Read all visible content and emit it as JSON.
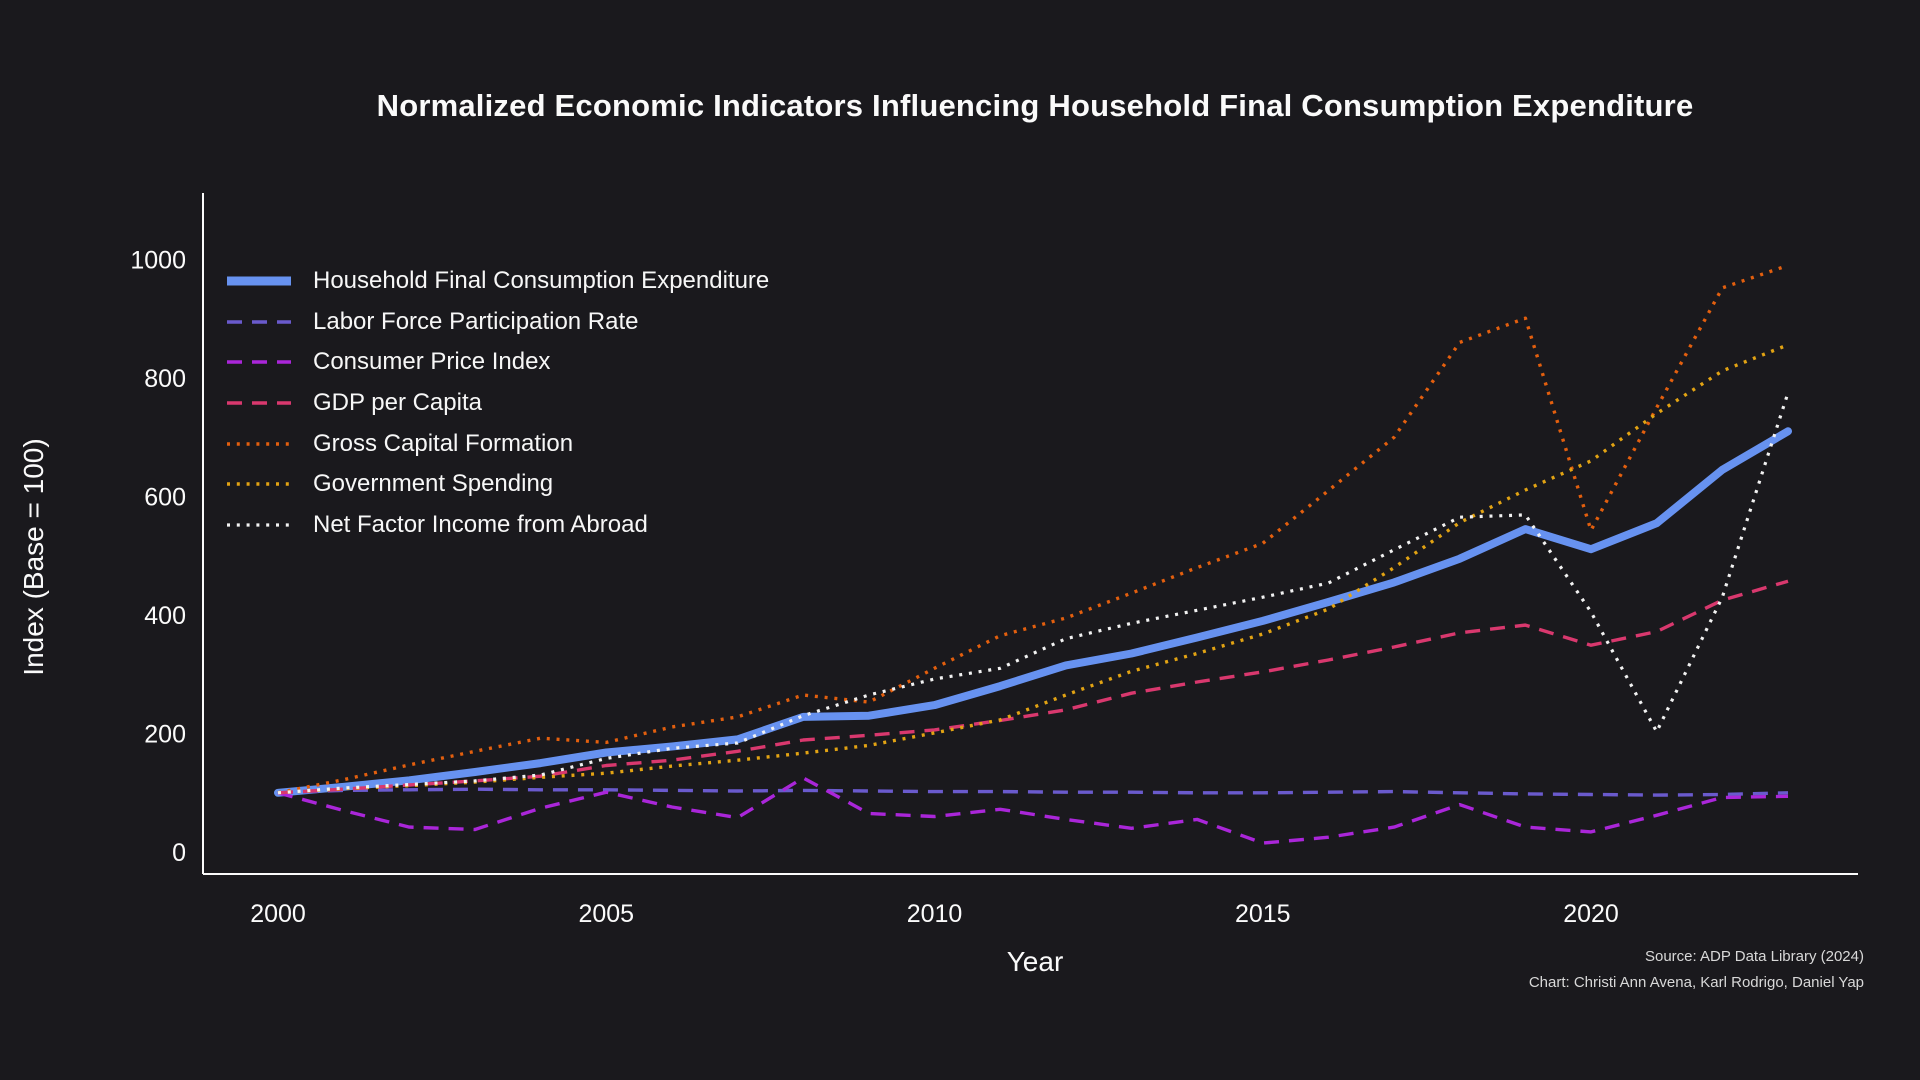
{
  "background_color": "#1a191d",
  "text_color": "#fafafa",
  "axis_color": "#fbfbfb",
  "source": {
    "line1": "Source: ADP Data Library (2024)",
    "line2": "Chart: Christi Ann Avena, Karl Rodrigo, Daniel Yap"
  },
  "chart_data": {
    "type": "line",
    "title": "Normalized Economic Indicators Influencing Household Final Consumption Expenditure",
    "xlabel": "Year",
    "ylabel": "Index (Base = 100)",
    "grid": false,
    "legend_position": "upper left",
    "x": [
      2000,
      2001,
      2002,
      2003,
      2004,
      2005,
      2006,
      2007,
      2008,
      2009,
      2010,
      2011,
      2012,
      2013,
      2014,
      2015,
      2016,
      2017,
      2018,
      2019,
      2020,
      2021,
      2022,
      2023
    ],
    "xticks": [
      2000,
      2005,
      2010,
      2015,
      2020
    ],
    "yticks": [
      0,
      200,
      400,
      600,
      800,
      1000
    ],
    "xlim": [
      1998.8,
      2025.1
    ],
    "ylim": [
      -40,
      1105
    ],
    "series": [
      {
        "name": "Household Final Consumption Expenditure",
        "id": "household-final-consumption-expenditure",
        "color": "#6792f0",
        "style": "solid",
        "width": 8,
        "values": [
          100,
          110,
          121,
          135,
          150,
          168,
          178,
          190,
          228,
          230,
          248,
          280,
          315,
          335,
          362,
          390,
          422,
          455,
          495,
          545,
          511,
          555,
          645,
          710
        ]
      },
      {
        "name": "Labor Force Participation Rate",
        "id": "labor-force-participation-rate",
        "color": "#6a5acd",
        "style": "dashed",
        "width": 3.4,
        "values": [
          100,
          104,
          105,
          106,
          105,
          105,
          104,
          103,
          104,
          103,
          102,
          102,
          101,
          101,
          100,
          100,
          101,
          102,
          100,
          98,
          97,
          96,
          97,
          100
        ]
      },
      {
        "name": "Consumer Price Index",
        "id": "consumer-price-index",
        "color": "#aa26d9",
        "style": "dashed",
        "width": 3.4,
        "values": [
          100,
          70,
          42,
          38,
          74,
          101,
          76,
          58,
          125,
          65,
          60,
          72,
          55,
          40,
          55,
          15,
          25,
          42,
          80,
          42,
          34,
          62,
          92,
          94
        ]
      },
      {
        "name": "GDP per Capita",
        "id": "gdp-per-capita",
        "color": "#d9386e",
        "style": "dashed",
        "width": 3.4,
        "values": [
          100,
          106,
          113,
          120,
          128,
          146,
          155,
          170,
          189,
          197,
          206,
          222,
          240,
          268,
          287,
          304,
          324,
          346,
          370,
          383,
          349,
          372,
          425,
          457
        ]
      },
      {
        "name": "Gross Capital Formation",
        "id": "gross-capital-formation",
        "color": "#e35f0e",
        "style": "dotted",
        "width": 3.4,
        "values": [
          100,
          122,
          147,
          170,
          192,
          185,
          211,
          228,
          265,
          253,
          310,
          365,
          395,
          437,
          480,
          521,
          610,
          700,
          860,
          901,
          543,
          750,
          952,
          990
        ]
      },
      {
        "name": "Government Spending",
        "id": "government-spending",
        "color": "#e2a313",
        "style": "dotted",
        "width": 3.4,
        "values": [
          100,
          107,
          112,
          118,
          126,
          133,
          145,
          155,
          167,
          180,
          201,
          223,
          265,
          305,
          335,
          368,
          410,
          480,
          556,
          611,
          660,
          740,
          812,
          856
        ]
      },
      {
        "name": "Net Factor Income from Abroad",
        "id": "net-factor-income-from-abroad",
        "color": "#f2f2f2",
        "style": "dotted",
        "width": 3.2,
        "values": [
          100,
          108,
          114,
          120,
          130,
          158,
          175,
          184,
          230,
          265,
          292,
          310,
          360,
          386,
          408,
          430,
          454,
          510,
          565,
          569,
          405,
          203,
          430,
          775
        ]
      }
    ]
  }
}
